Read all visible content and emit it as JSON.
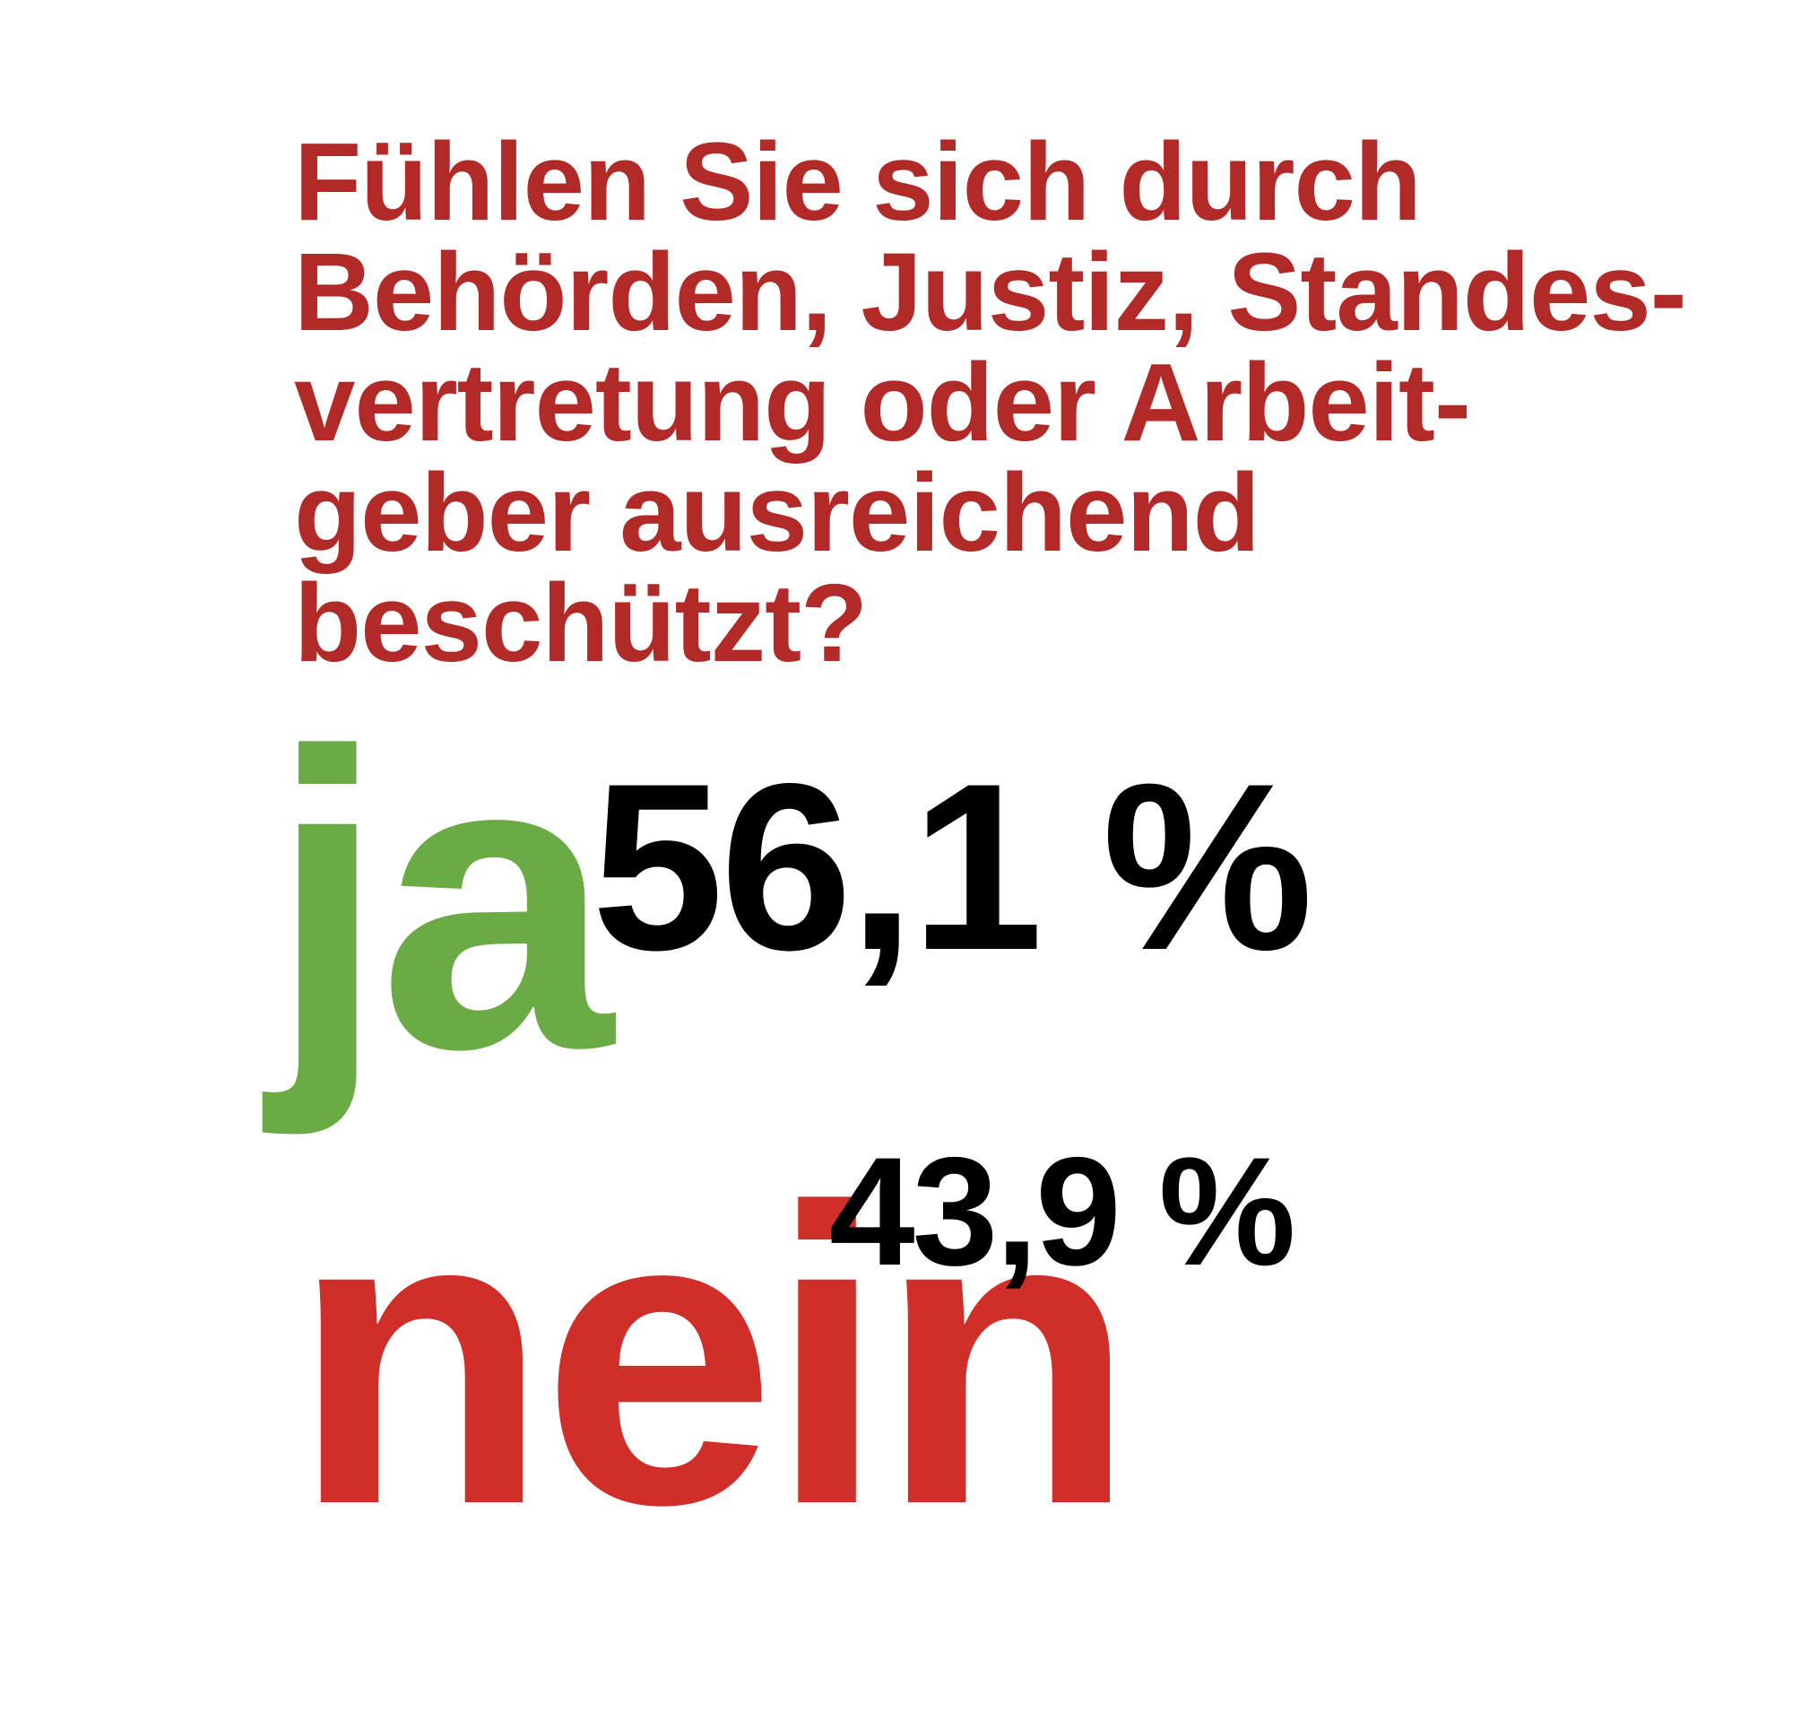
{
  "chart_data": {
    "type": "table",
    "title_lines": [
      "Fühlen Sie sich durch",
      "Behörden, Justiz, Standes-",
      "vertretung oder Arbeit-",
      "geber ausreichend",
      "beschützt?"
    ],
    "answers": [
      {
        "label": "ja",
        "value": 56.1,
        "value_label": "56,1 %",
        "color": "#6aab46"
      },
      {
        "label": "nein",
        "value": 43.9,
        "value_label": "43,9 %",
        "color": "#cf2e29"
      }
    ],
    "unit": "%",
    "title_color": "#b22a28",
    "value_color": "#000000"
  }
}
